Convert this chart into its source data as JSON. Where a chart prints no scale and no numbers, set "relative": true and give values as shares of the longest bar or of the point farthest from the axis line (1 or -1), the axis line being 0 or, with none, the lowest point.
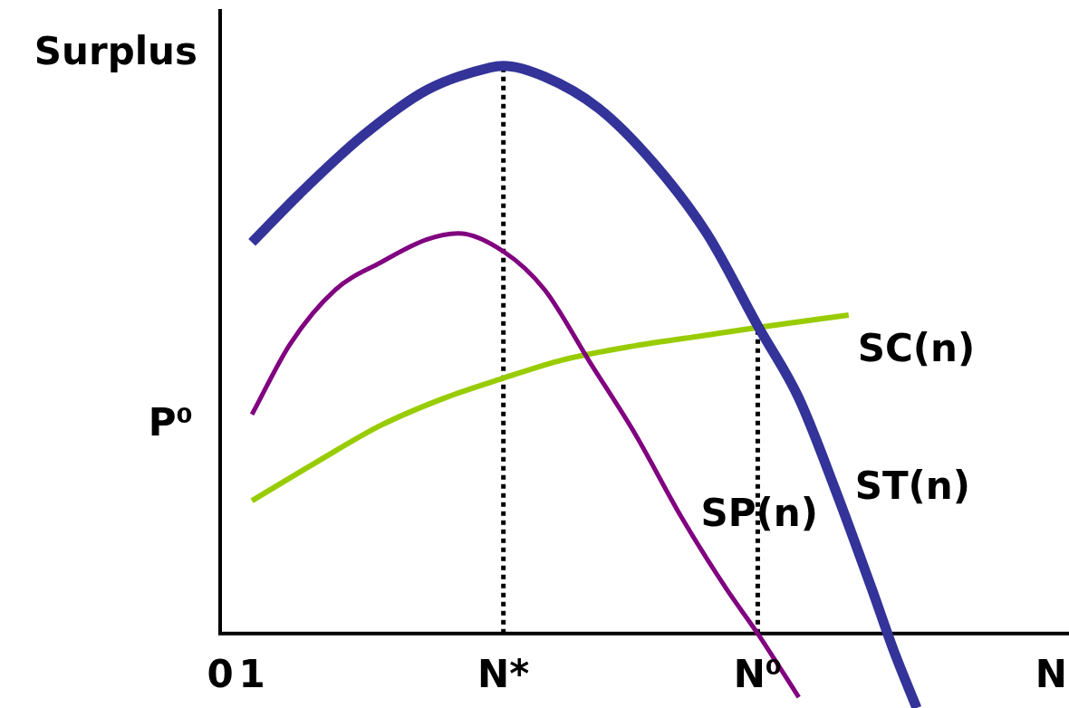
{
  "chart_data": {
    "type": "line",
    "relative": true,
    "xlabel": "N",
    "ylabel": "Surplus",
    "xlim": [
      0,
      26.7
    ],
    "xticks": [
      0,
      1,
      {
        "value": 8.91,
        "label": "N*"
      },
      {
        "value": 16.91,
        "label": "N⁰"
      }
    ],
    "series": [
      {
        "name": "ST(n)",
        "color": "#333399",
        "x": [
          1,
          2.49,
          4.49,
          6.49,
          8.49,
          8.91,
          10.2,
          11.91,
          13.63,
          15.34,
          16.91,
          18.2,
          19.34,
          20.49,
          21.2,
          21.91
        ],
        "values": [
          0.689,
          0.774,
          0.877,
          0.957,
          0.997,
          1,
          0.981,
          0.925,
          0.829,
          0.702,
          0.542,
          0.415,
          0.255,
          0.08,
          -0.032,
          -0.131
        ]
      },
      {
        "name": "SP(n)",
        "color": "#800080",
        "x": [
          1,
          2.2,
          3.63,
          5.06,
          6.49,
          7.49,
          8.91,
          10.2,
          11.63,
          13.06,
          14.49,
          15.91,
          16.91,
          18.2
        ],
        "values": [
          0.386,
          0.51,
          0.606,
          0.654,
          0.694,
          0.705,
          0.673,
          0.606,
          0.478,
          0.351,
          0.207,
          0.08,
          0,
          -0.112
        ]
      },
      {
        "name": "SC(n)",
        "color": "#99cc00",
        "x": [
          1,
          3.06,
          5.06,
          7.06,
          8.91,
          10.77,
          13.06,
          15.34,
          16.91,
          19.77
        ],
        "values": [
          0.234,
          0.303,
          0.367,
          0.415,
          0.45,
          0.482,
          0.507,
          0.526,
          0.539,
          0.561
        ]
      }
    ],
    "ref_lines": [
      {
        "axis": "x",
        "value": 8.91,
        "color": "#000000",
        "line_style": "dotted"
      },
      {
        "axis": "x",
        "value": 16.91,
        "color": "#000000",
        "line_style": "dotted"
      }
    ],
    "annotations": [
      "P⁰"
    ],
    "legend": false,
    "marker": "none",
    "line_style": "solid"
  }
}
